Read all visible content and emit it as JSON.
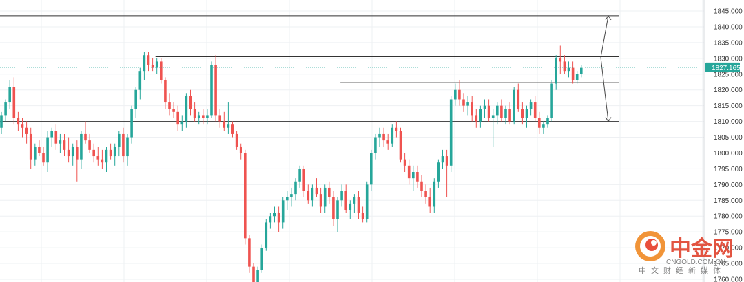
{
  "chart_data": {
    "type": "candlestick",
    "ylim": [
      1759,
      1848
    ],
    "y_ticks": [
      1845,
      1840,
      1835,
      1830,
      1825,
      1820,
      1815,
      1810,
      1805,
      1800,
      1795,
      1790,
      1785,
      1780,
      1775,
      1770,
      1765,
      1760
    ],
    "y_tick_labels": [
      "1845.000",
      "1840.000",
      "1835.000",
      "1830.000",
      "1825.000",
      "1820.000",
      "1815.000",
      "1810.000",
      "1805.000",
      "1800.000",
      "1795.000",
      "1790.000",
      "1785.000",
      "1780.000",
      "1775.000",
      "1770.000",
      "1765.000",
      "1760.000"
    ],
    "current_price": 1827.165,
    "current_price_label": "1827.165",
    "grid": true,
    "colors": {
      "up": "#26a69a",
      "down": "#ef5350",
      "price_line": "#26a69a",
      "hline": "#333333",
      "grid": "#eef0f3"
    },
    "horizontal_lines": [
      {
        "price": 1843.5,
        "from_candle": 0
      },
      {
        "price": 1830.5,
        "from_candle": 37
      },
      {
        "price": 1822.3,
        "from_candle": 81
      },
      {
        "price": 1810.0,
        "from_candle": 0
      }
    ],
    "arrows": [
      {
        "from": 1830.3,
        "to": 1843.5
      },
      {
        "from": 1830.3,
        "to": 1810.0
      }
    ],
    "candles": [
      [
        1808,
        1813,
        1806,
        1812
      ],
      [
        1812,
        1817,
        1810,
        1816
      ],
      [
        1816,
        1823,
        1814,
        1821
      ],
      [
        1821,
        1824,
        1809,
        1811
      ],
      [
        1811,
        1813,
        1807,
        1809
      ],
      [
        1809,
        1811,
        1805,
        1808
      ],
      [
        1808,
        1810,
        1803,
        1806
      ],
      [
        1806,
        1808,
        1795,
        1798
      ],
      [
        1798,
        1803,
        1796,
        1802
      ],
      [
        1802,
        1804,
        1799,
        1800
      ],
      [
        1800,
        1802,
        1796,
        1797
      ],
      [
        1797,
        1807,
        1794,
        1805
      ],
      [
        1805,
        1808,
        1802,
        1807
      ],
      [
        1807,
        1809,
        1801,
        1803
      ],
      [
        1803,
        1806,
        1800,
        1804
      ],
      [
        1804,
        1806,
        1799,
        1801
      ],
      [
        1801,
        1805,
        1797,
        1799
      ],
      [
        1799,
        1803,
        1796,
        1802
      ],
      [
        1802,
        1804,
        1791,
        1798
      ],
      [
        1798,
        1807,
        1795,
        1806
      ],
      [
        1806,
        1810,
        1803,
        1804
      ],
      [
        1804,
        1806,
        1800,
        1801
      ],
      [
        1801,
        1803,
        1797,
        1799
      ],
      [
        1799,
        1802,
        1796,
        1798
      ],
      [
        1798,
        1801,
        1795,
        1797
      ],
      [
        1797,
        1802,
        1794,
        1801
      ],
      [
        1801,
        1803,
        1798,
        1799
      ],
      [
        1799,
        1803,
        1796,
        1802
      ],
      [
        1802,
        1807,
        1799,
        1806
      ],
      [
        1806,
        1808,
        1797,
        1799
      ],
      [
        1799,
        1806,
        1796,
        1805
      ],
      [
        1805,
        1815,
        1803,
        1814
      ],
      [
        1814,
        1821,
        1811,
        1820
      ],
      [
        1820,
        1827,
        1817,
        1826
      ],
      [
        1826,
        1832,
        1823,
        1831
      ],
      [
        1831,
        1832,
        1826,
        1828
      ],
      [
        1828,
        1830,
        1826,
        1827
      ],
      [
        1827,
        1830,
        1825,
        1829
      ],
      [
        1829,
        1830,
        1822,
        1823
      ],
      [
        1823,
        1824,
        1814,
        1816
      ],
      [
        1816,
        1819,
        1812,
        1814
      ],
      [
        1814,
        1816,
        1811,
        1813
      ],
      [
        1813,
        1815,
        1807,
        1809
      ],
      [
        1809,
        1812,
        1807,
        1810
      ],
      [
        1810,
        1819,
        1808,
        1818
      ],
      [
        1818,
        1820,
        1812,
        1814
      ],
      [
        1814,
        1816,
        1810,
        1811
      ],
      [
        1811,
        1813,
        1809,
        1812
      ],
      [
        1812,
        1814,
        1809,
        1811
      ],
      [
        1811,
        1814,
        1809,
        1812
      ],
      [
        1812,
        1829,
        1811,
        1828
      ],
      [
        1828,
        1831,
        1810,
        1812
      ],
      [
        1812,
        1814,
        1808,
        1810
      ],
      [
        1810,
        1813,
        1807,
        1808
      ],
      [
        1808,
        1816,
        1806,
        1809
      ],
      [
        1809,
        1810,
        1805,
        1806
      ],
      [
        1806,
        1807,
        1801,
        1802
      ],
      [
        1802,
        1803,
        1798,
        1800
      ],
      [
        1800,
        1801,
        1771,
        1773
      ],
      [
        1773,
        1774,
        1762,
        1764
      ],
      [
        1764,
        1765,
        1756,
        1758
      ],
      [
        1758,
        1764,
        1756,
        1763
      ],
      [
        1763,
        1771,
        1762,
        1770
      ],
      [
        1770,
        1779,
        1769,
        1778
      ],
      [
        1778,
        1781,
        1776,
        1780
      ],
      [
        1780,
        1783,
        1778,
        1781
      ],
      [
        1781,
        1783,
        1775,
        1778
      ],
      [
        1778,
        1786,
        1776,
        1785
      ],
      [
        1785,
        1788,
        1782,
        1786
      ],
      [
        1786,
        1789,
        1783,
        1787
      ],
      [
        1787,
        1792,
        1785,
        1791
      ],
      [
        1791,
        1796,
        1789,
        1795
      ],
      [
        1795,
        1796,
        1786,
        1788
      ],
      [
        1788,
        1790,
        1784,
        1785
      ],
      [
        1785,
        1790,
        1783,
        1789
      ],
      [
        1789,
        1792,
        1786,
        1787
      ],
      [
        1787,
        1789,
        1781,
        1783
      ],
      [
        1783,
        1790,
        1781,
        1789
      ],
      [
        1789,
        1791,
        1784,
        1786
      ],
      [
        1786,
        1788,
        1777,
        1779
      ],
      [
        1779,
        1786,
        1775,
        1785
      ],
      [
        1785,
        1790,
        1783,
        1788
      ],
      [
        1788,
        1790,
        1781,
        1782
      ],
      [
        1782,
        1785,
        1779,
        1784
      ],
      [
        1784,
        1787,
        1781,
        1786
      ],
      [
        1786,
        1788,
        1779,
        1781
      ],
      [
        1781,
        1783,
        1778,
        1779
      ],
      [
        1779,
        1791,
        1778,
        1790
      ],
      [
        1790,
        1801,
        1788,
        1800
      ],
      [
        1800,
        1806,
        1798,
        1805
      ],
      [
        1805,
        1808,
        1802,
        1806
      ],
      [
        1806,
        1808,
        1802,
        1804
      ],
      [
        1804,
        1806,
        1801,
        1803
      ],
      [
        1803,
        1809,
        1802,
        1808
      ],
      [
        1808,
        1810,
        1805,
        1807
      ],
      [
        1807,
        1808,
        1797,
        1798
      ],
      [
        1798,
        1800,
        1794,
        1796
      ],
      [
        1796,
        1798,
        1790,
        1792
      ],
      [
        1792,
        1796,
        1788,
        1794
      ],
      [
        1794,
        1796,
        1789,
        1791
      ],
      [
        1791,
        1793,
        1786,
        1788
      ],
      [
        1788,
        1790,
        1784,
        1786
      ],
      [
        1786,
        1789,
        1781,
        1783
      ],
      [
        1783,
        1792,
        1781,
        1791
      ],
      [
        1791,
        1798,
        1789,
        1797
      ],
      [
        1797,
        1801,
        1795,
        1799
      ],
      [
        1799,
        1801,
        1786,
        1796
      ],
      [
        1796,
        1818,
        1794,
        1817
      ],
      [
        1817,
        1822,
        1815,
        1820
      ],
      [
        1820,
        1823,
        1815,
        1817
      ],
      [
        1817,
        1819,
        1813,
        1815
      ],
      [
        1815,
        1818,
        1812,
        1816
      ],
      [
        1816,
        1818,
        1810,
        1812
      ],
      [
        1812,
        1814,
        1808,
        1810
      ],
      [
        1810,
        1815,
        1808,
        1814
      ],
      [
        1814,
        1817,
        1811,
        1815
      ],
      [
        1815,
        1817,
        1810,
        1811
      ],
      [
        1811,
        1814,
        1802,
        1812
      ],
      [
        1812,
        1816,
        1809,
        1815
      ],
      [
        1815,
        1817,
        1810,
        1811
      ],
      [
        1811,
        1815,
        1809,
        1814
      ],
      [
        1814,
        1816,
        1809,
        1810
      ],
      [
        1810,
        1821,
        1809,
        1820
      ],
      [
        1820,
        1822,
        1813,
        1814
      ],
      [
        1814,
        1816,
        1809,
        1811
      ],
      [
        1811,
        1815,
        1808,
        1814
      ],
      [
        1814,
        1817,
        1812,
        1816
      ],
      [
        1816,
        1818,
        1810,
        1811
      ],
      [
        1811,
        1813,
        1806,
        1808
      ],
      [
        1808,
        1810,
        1806,
        1809
      ],
      [
        1809,
        1812,
        1808,
        1811
      ],
      [
        1811,
        1823,
        1810,
        1822
      ],
      [
        1822,
        1831,
        1820,
        1830
      ],
      [
        1830,
        1834,
        1825,
        1829
      ],
      [
        1829,
        1831,
        1825,
        1826
      ],
      [
        1826,
        1829,
        1824,
        1827
      ],
      [
        1827,
        1829,
        1822,
        1823
      ],
      [
        1823,
        1826,
        1822,
        1825
      ],
      [
        1825,
        1828,
        1824,
        1827
      ]
    ]
  },
  "watermark": {
    "logo": "中金网",
    "sub_latin": "CNGOLD.COM.CN",
    "sub_cn": "中文财经新媒体"
  }
}
